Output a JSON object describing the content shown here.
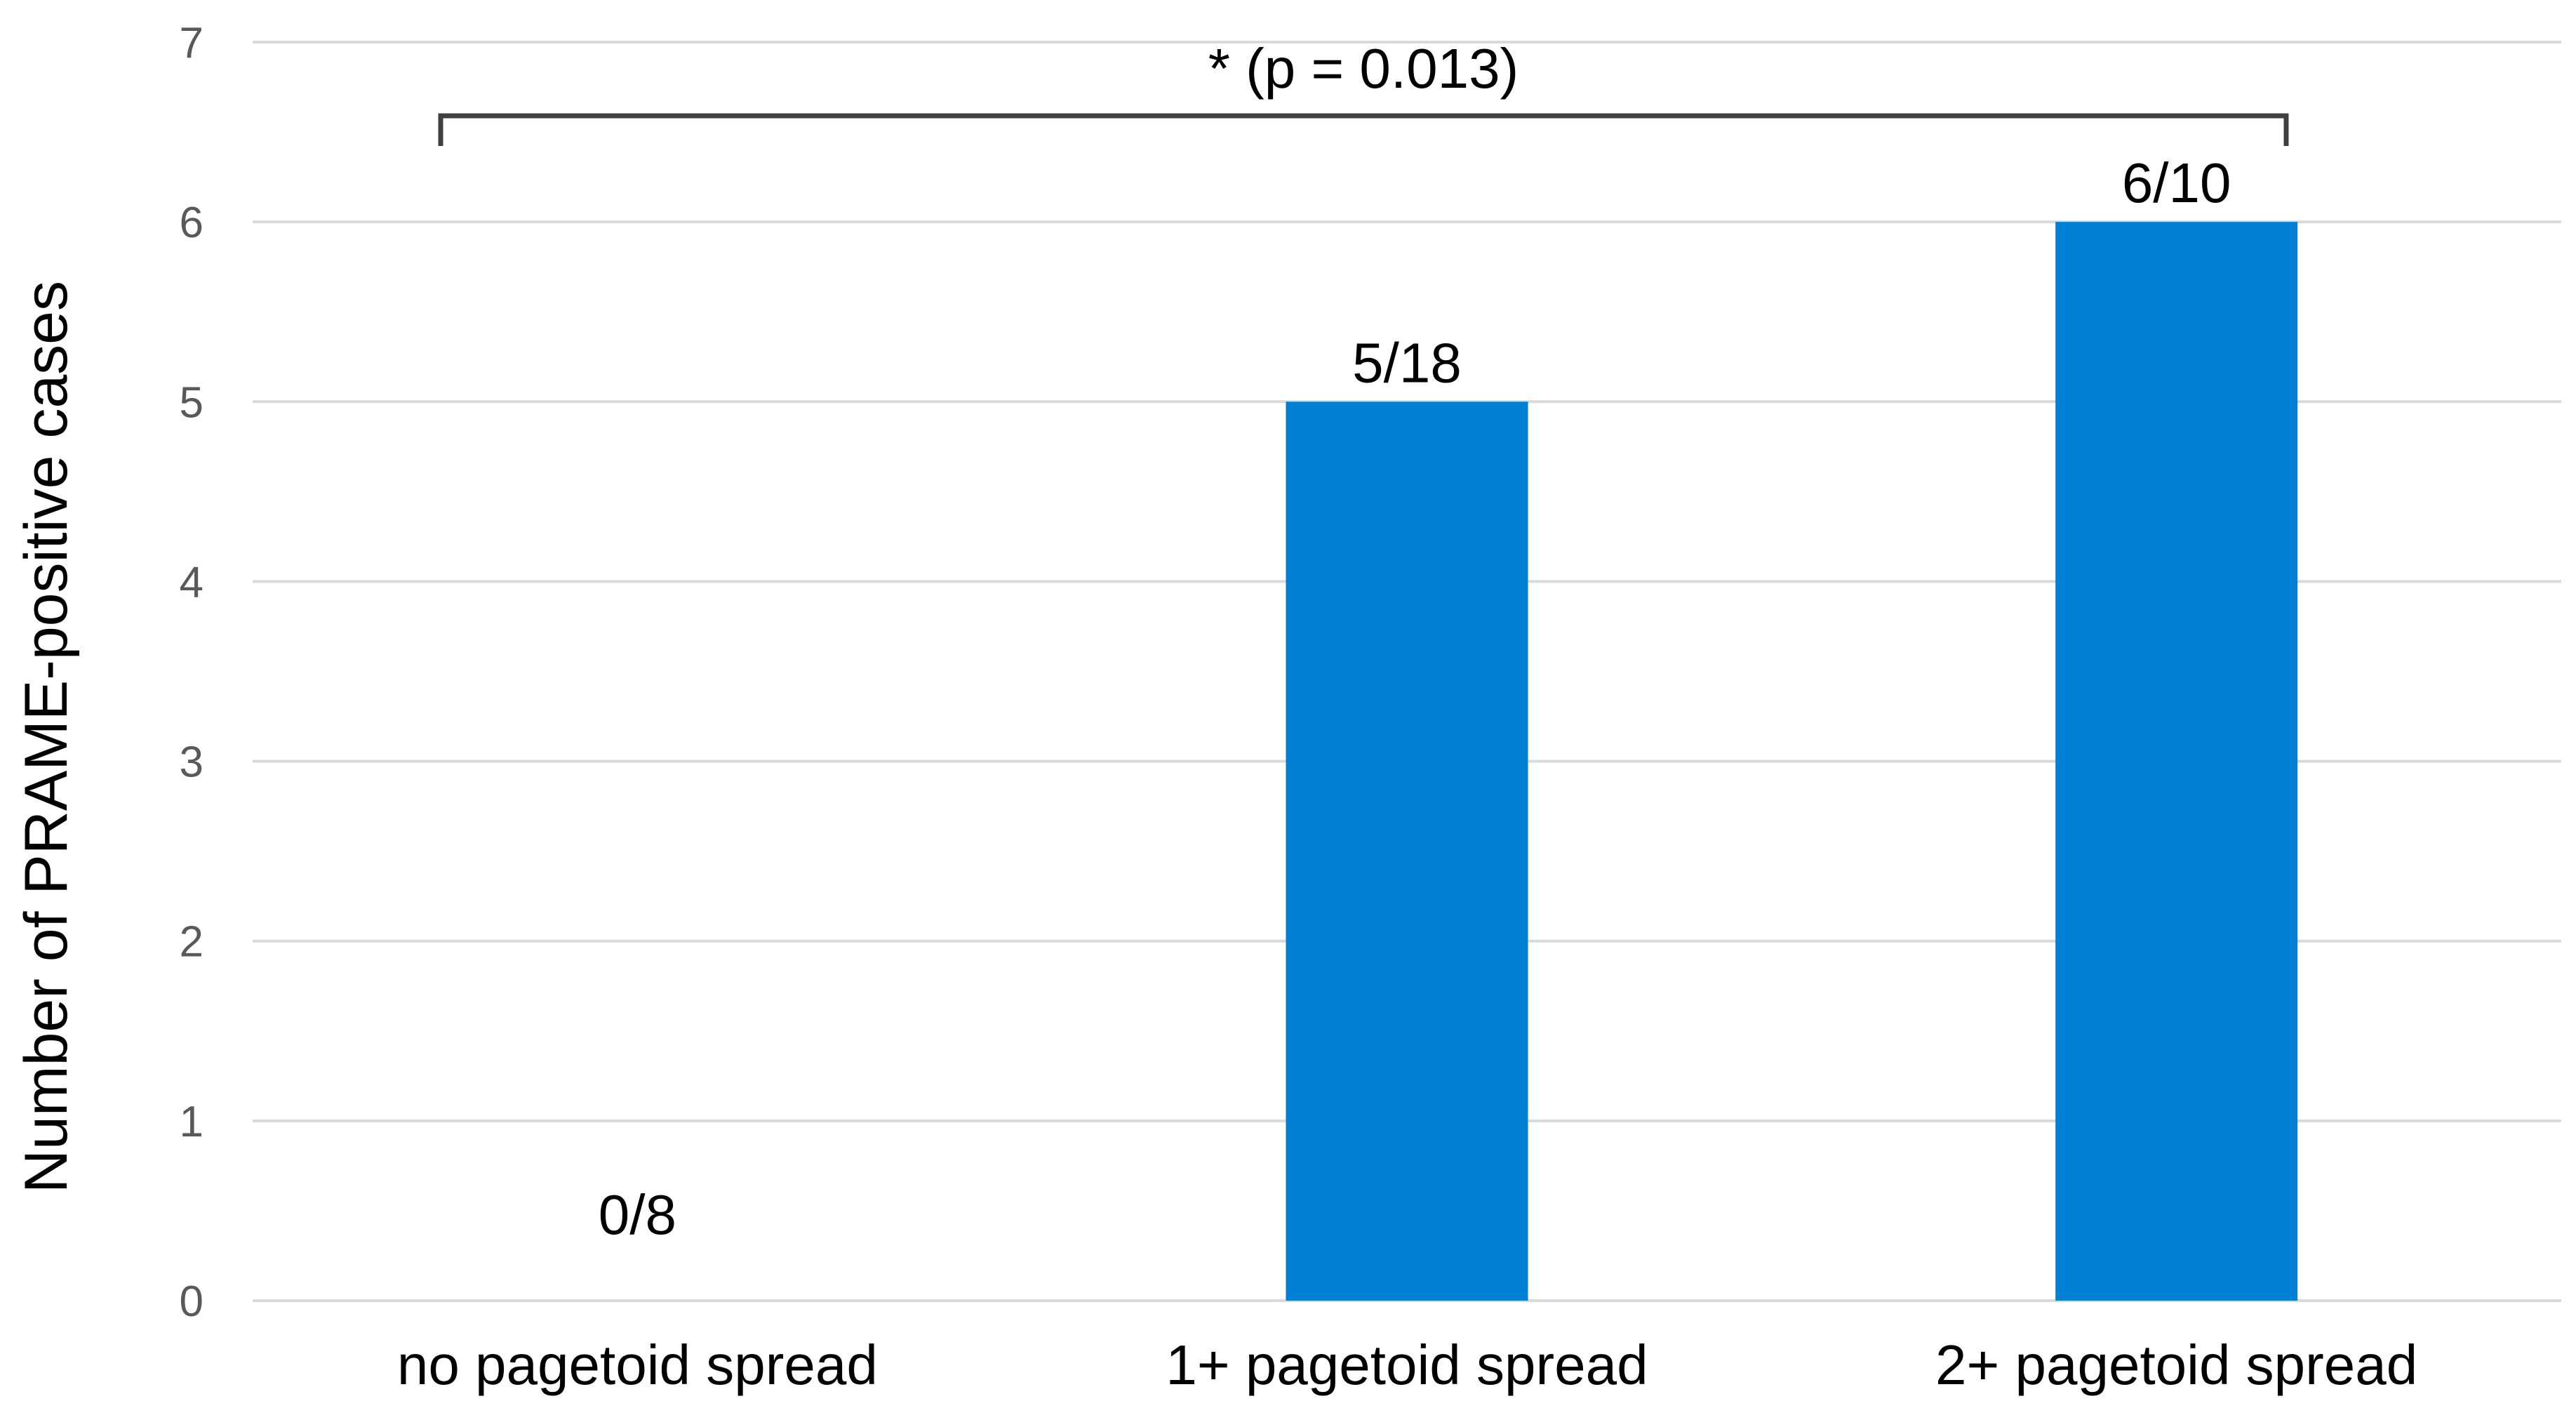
{
  "chart_data": {
    "type": "bar",
    "categories": [
      "no pagetoid spread",
      "1+ pagetoid spread",
      "2+ pagetoid spread"
    ],
    "values": [
      0,
      5,
      6
    ],
    "data_labels": [
      "0/8",
      "5/18",
      "6/10"
    ],
    "title": "",
    "xlabel": "",
    "ylabel": "Number of PRAME-positive cases",
    "ylim": [
      0,
      7
    ],
    "yticks": [
      0,
      1,
      2,
      3,
      4,
      5,
      6,
      7
    ],
    "grid": true,
    "legend": "none",
    "bar_color": "#0080d4",
    "gridline_color": "#d9d9d9",
    "annotations": [
      {
        "text": "* (p = 0.013)",
        "from_category": 0,
        "to_category": 2,
        "kind": "significance-bracket"
      }
    ]
  }
}
